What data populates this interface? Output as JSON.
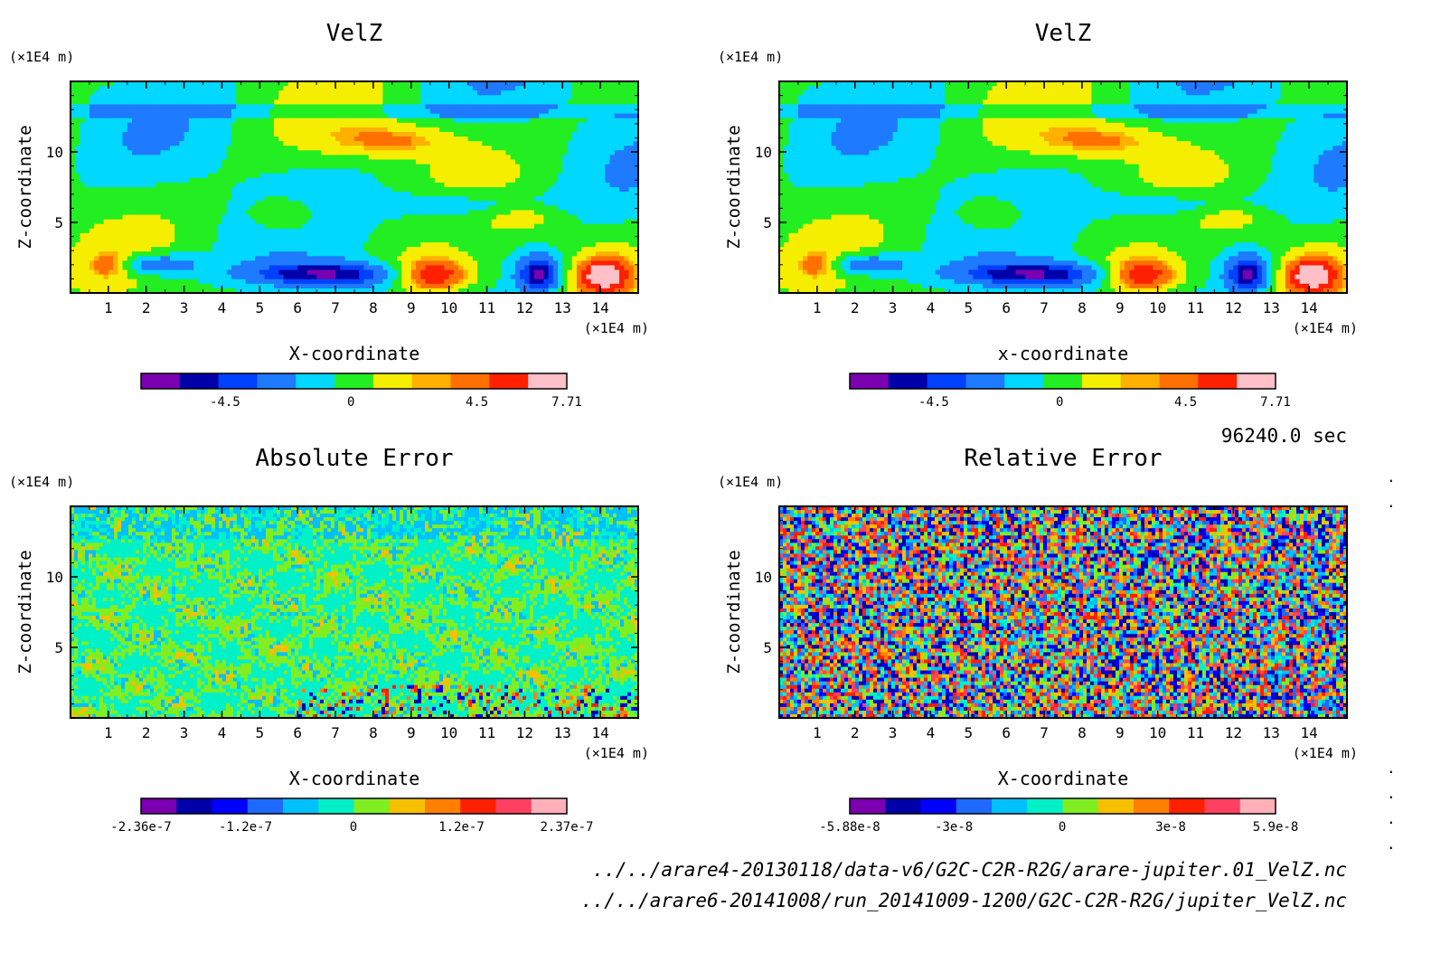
{
  "time_label": "96240.0 sec",
  "files": [
    "../../arare4-20130118/data-v6/G2C-C2R-R2G/arare-jupiter.01_VelZ.nc",
    "../../arare6-20141008/run_20141009-1200/G2C-C2R-R2G/jupiter_VelZ.nc"
  ],
  "chart_data": [
    {
      "type": "heatmap",
      "title": "VelZ",
      "xlabel": "X-coordinate",
      "ylabel": "Z-coordinate",
      "x_unit": "(×1E4 m)",
      "y_unit": "(×1E4 m)",
      "xticks": [
        1,
        2,
        3,
        4,
        5,
        6,
        7,
        8,
        9,
        10,
        11,
        12,
        13,
        14
      ],
      "yticks": [
        5,
        10
      ],
      "xlim": [
        0,
        15
      ],
      "ylim": [
        0,
        15
      ],
      "colorbar": {
        "colors": [
          "#7a00b0",
          "#0000a8",
          "#0040ff",
          "#1e7aff",
          "#00d8ff",
          "#22ee22",
          "#f6ee00",
          "#ffb000",
          "#ff7000",
          "#ff2000",
          "#ffc0c8"
        ],
        "tick_labels": [
          "-4.5",
          "0",
          "4.5",
          "7.71"
        ],
        "tick_values": [
          -4.5,
          0,
          4.5,
          7.71
        ],
        "range": [
          -7.5,
          7.71
        ]
      },
      "field_pattern": "smooth"
    },
    {
      "type": "heatmap",
      "title": "VelZ",
      "xlabel": "x-coordinate",
      "ylabel": "Z-coordinate",
      "x_unit": "(×1E4 m)",
      "y_unit": "(×1E4 m)",
      "xticks": [
        1,
        2,
        3,
        4,
        5,
        6,
        7,
        8,
        9,
        10,
        11,
        12,
        13,
        14
      ],
      "yticks": [
        5,
        10
      ],
      "xlim": [
        0,
        15
      ],
      "ylim": [
        0,
        15
      ],
      "colorbar": {
        "colors": [
          "#7a00b0",
          "#0000a8",
          "#0040ff",
          "#1e7aff",
          "#00d8ff",
          "#22ee22",
          "#f6ee00",
          "#ffb000",
          "#ff7000",
          "#ff2000",
          "#ffc0c8"
        ],
        "tick_labels": [
          "-4.5",
          "0",
          "4.5",
          "7.71"
        ],
        "tick_values": [
          -4.5,
          0,
          4.5,
          7.71
        ],
        "range": [
          -7.5,
          7.71
        ]
      },
      "field_pattern": "smooth"
    },
    {
      "type": "heatmap",
      "title": "Absolute Error",
      "xlabel": "X-coordinate",
      "ylabel": "Z-coordinate",
      "x_unit": "(×1E4 m)",
      "y_unit": "(×1E4 m)",
      "xticks": [
        1,
        2,
        3,
        4,
        5,
        6,
        7,
        8,
        9,
        10,
        11,
        12,
        13,
        14
      ],
      "yticks": [
        5,
        10
      ],
      "xlim": [
        0,
        15
      ],
      "ylim": [
        0,
        15
      ],
      "colorbar": {
        "colors": [
          "#7a00b0",
          "#0000a8",
          "#0000ff",
          "#1e6aff",
          "#00c0ff",
          "#00f0c8",
          "#80ee20",
          "#f6c000",
          "#ff8000",
          "#ff2000",
          "#ff4060",
          "#ffb0b8"
        ],
        "tick_labels": [
          "-2.36e-7",
          "-1.2e-7",
          "0",
          "1.2e-7",
          "2.37e-7"
        ],
        "tick_values": [
          -2.36e-07,
          -1.2e-07,
          0,
          1.2e-07,
          2.37e-07
        ],
        "range": [
          -2.36e-07,
          2.37e-07
        ]
      },
      "field_pattern": "noise-low"
    },
    {
      "type": "heatmap",
      "title": "Relative Error",
      "xlabel": "X-coordinate",
      "ylabel": "Z-coordinate",
      "x_unit": "(×1E4 m)",
      "y_unit": "(×1E4 m)",
      "xticks": [
        1,
        2,
        3,
        4,
        5,
        6,
        7,
        8,
        9,
        10,
        11,
        12,
        13,
        14
      ],
      "yticks": [
        5,
        10
      ],
      "xlim": [
        0,
        15
      ],
      "ylim": [
        0,
        15
      ],
      "colorbar": {
        "colors": [
          "#7a00b0",
          "#0000a8",
          "#0000ff",
          "#1e6aff",
          "#00c0ff",
          "#00f0c8",
          "#80ee20",
          "#f6c000",
          "#ff8000",
          "#ff2000",
          "#ff4060",
          "#ffb0b8"
        ],
        "tick_labels": [
          "-5.88e-8",
          "-3e-8",
          "0",
          "3e-8",
          "5.9e-8"
        ],
        "tick_values": [
          -5.88e-08,
          -3e-08,
          0,
          3e-08,
          5.9e-08
        ],
        "range": [
          -5.88e-08,
          5.9e-08
        ]
      },
      "field_pattern": "noise-high"
    }
  ]
}
